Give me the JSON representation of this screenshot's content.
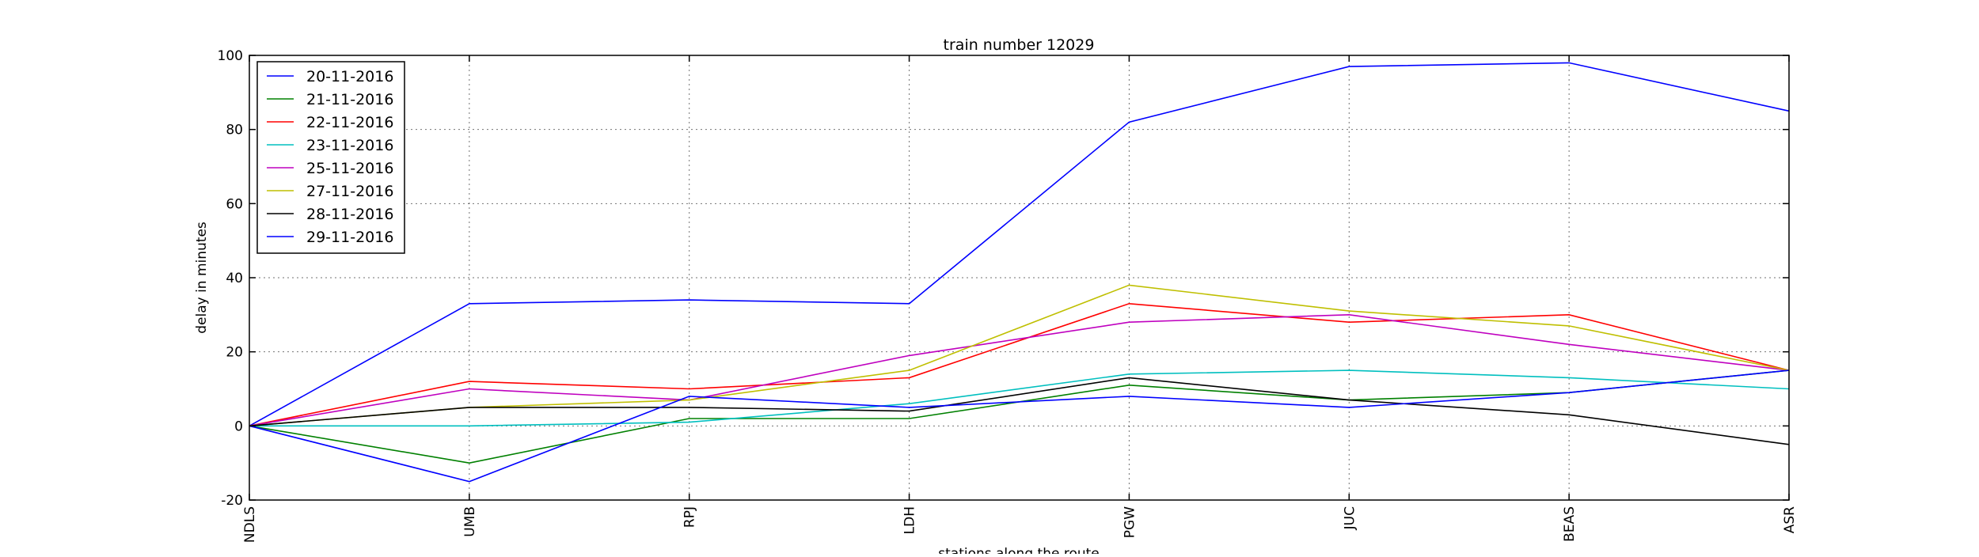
{
  "chart_data": {
    "type": "line",
    "title": "train number 12029",
    "xlabel": "stations along the route",
    "ylabel": "delay in minutes",
    "categories": [
      "NDLS",
      "UMB",
      "RPJ",
      "LDH",
      "PGW",
      "JUC",
      "BEAS",
      "ASR"
    ],
    "ylim": [
      -20,
      100
    ],
    "yticks": [
      -20,
      0,
      20,
      40,
      60,
      80,
      100
    ],
    "grid": true,
    "legend_position": "top-left",
    "series": [
      {
        "name": "20-11-2016",
        "color": "#0000ff",
        "values": [
          0,
          33,
          34,
          33,
          82,
          97,
          98,
          85
        ]
      },
      {
        "name": "21-11-2016",
        "color": "#008000",
        "values": [
          0,
          -10,
          2,
          2,
          11,
          7,
          9,
          15
        ]
      },
      {
        "name": "22-11-2016",
        "color": "#ff0000",
        "values": [
          0,
          12,
          10,
          13,
          33,
          28,
          30,
          15
        ]
      },
      {
        "name": "23-11-2016",
        "color": "#00bfbf",
        "values": [
          0,
          0,
          1,
          6,
          14,
          15,
          13,
          10
        ]
      },
      {
        "name": "25-11-2016",
        "color": "#bf00bf",
        "values": [
          0,
          10,
          7,
          19,
          28,
          30,
          22,
          15
        ]
      },
      {
        "name": "27-11-2016",
        "color": "#bfbf00",
        "values": [
          0,
          5,
          7,
          15,
          38,
          31,
          27,
          15
        ]
      },
      {
        "name": "28-11-2016",
        "color": "#000000",
        "values": [
          0,
          5,
          5,
          4,
          13,
          7,
          3,
          -5
        ]
      },
      {
        "name": "29-11-2016",
        "color": "#0000ff",
        "values": [
          0,
          -15,
          8,
          5,
          8,
          5,
          9,
          15
        ]
      }
    ]
  }
}
